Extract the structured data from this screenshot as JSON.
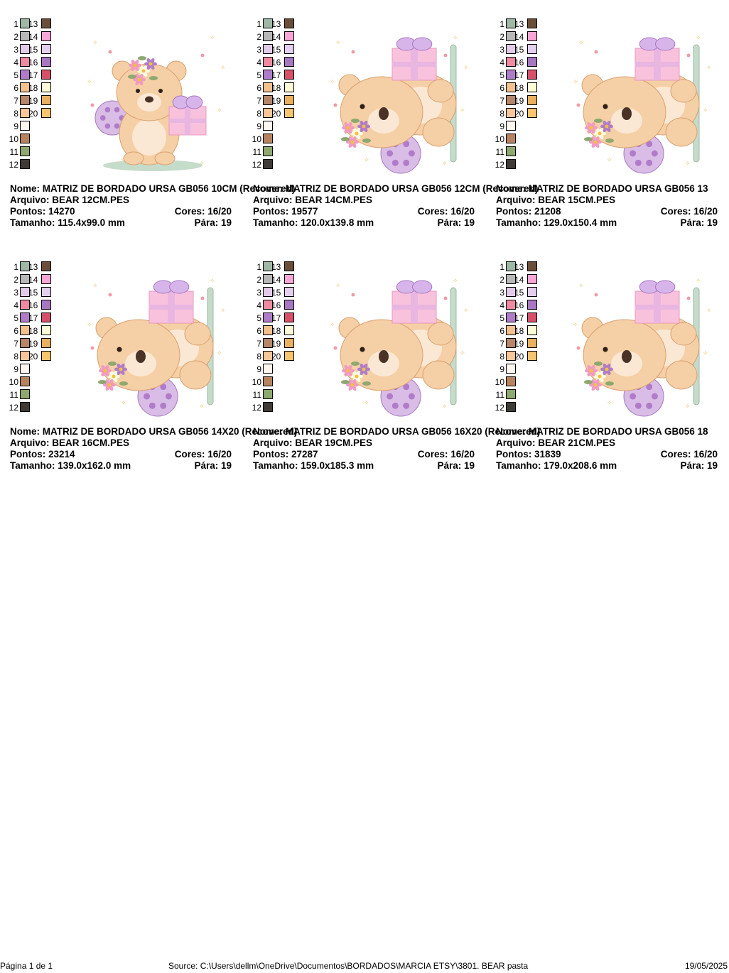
{
  "palette_numbers": [
    "1",
    "2",
    "3",
    "4",
    "5",
    "6",
    "7",
    "8",
    "9",
    "10",
    "11",
    "12",
    "13",
    "14",
    "15",
    "16",
    "17",
    "18",
    "19",
    "20"
  ],
  "palette_colors": [
    "#9fb8a6",
    "#b8b8b8",
    "#e2cbe8",
    "#f08aa0",
    "#b07cc9",
    "#f4c08e",
    "#b5866a",
    "#f7c79a",
    "#fff6f0",
    "#b7835f",
    "#8ea870",
    "#3e3a36",
    "#6b4e3a",
    "#f9a6d6",
    "#e3cfee",
    "#a877c2",
    "#d6506a",
    "#fffbd6",
    "#e9b060",
    "#f7c470"
  ],
  "labels": {
    "nome": "Nome:",
    "arquivo": "Arquivo:",
    "pontos": "Pontos:",
    "cores": "Cores:",
    "tamanho": "Tamanho:",
    "para": "Pára:"
  },
  "designs": [
    {
      "nome": "MATRIZ DE BORDADO URSA GB056 10CM (Recovered)",
      "arquivo": "BEAR 12CM.PES",
      "pontos": "14270",
      "cores": "16/20",
      "tamanho": "115.4x99.0 mm",
      "para": "19",
      "variant": "sitting"
    },
    {
      "nome": "MATRIZ DE BORDADO URSA GB056 12CM (Recovered)",
      "arquivo": "BEAR 14CM.PES",
      "pontos": "19577",
      "cores": "16/20",
      "tamanho": "120.0x139.8 mm",
      "para": "19",
      "variant": "peeking"
    },
    {
      "nome": "MATRIZ DE BORDADO URSA GB056 13",
      "arquivo": "BEAR 15CM.PES",
      "pontos": "21208",
      "cores": "16/20",
      "tamanho": "129.0x150.4 mm",
      "para": "19",
      "variant": "peeking"
    },
    {
      "nome": "MATRIZ DE BORDADO URSA GB056 14X20 (Recovered)",
      "arquivo": "BEAR 16CM.PES",
      "pontos": "23214",
      "cores": "16/20",
      "tamanho": "139.0x162.0 mm",
      "para": "19",
      "variant": "peeking"
    },
    {
      "nome": "MATRIZ DE BORDADO URSA GB056 16X20 (Recovered)",
      "arquivo": "BEAR 19CM.PES",
      "pontos": "27287",
      "cores": "16/20",
      "tamanho": "159.0x185.3 mm",
      "para": "19",
      "variant": "peeking"
    },
    {
      "nome": "MATRIZ DE BORDADO URSA GB056 18",
      "arquivo": "BEAR 21CM.PES",
      "pontos": "31839",
      "cores": "16/20",
      "tamanho": "179.0x208.6 mm",
      "para": "19",
      "variant": "peeking"
    }
  ],
  "footer": {
    "page": "Página 1 de 1",
    "source": "Source: C:\\Users\\dellm\\OneDrive\\Documentos\\BORDADOS\\MARCIA ETSY\\3801. BEAR pasta",
    "date": "19/05/2025"
  }
}
